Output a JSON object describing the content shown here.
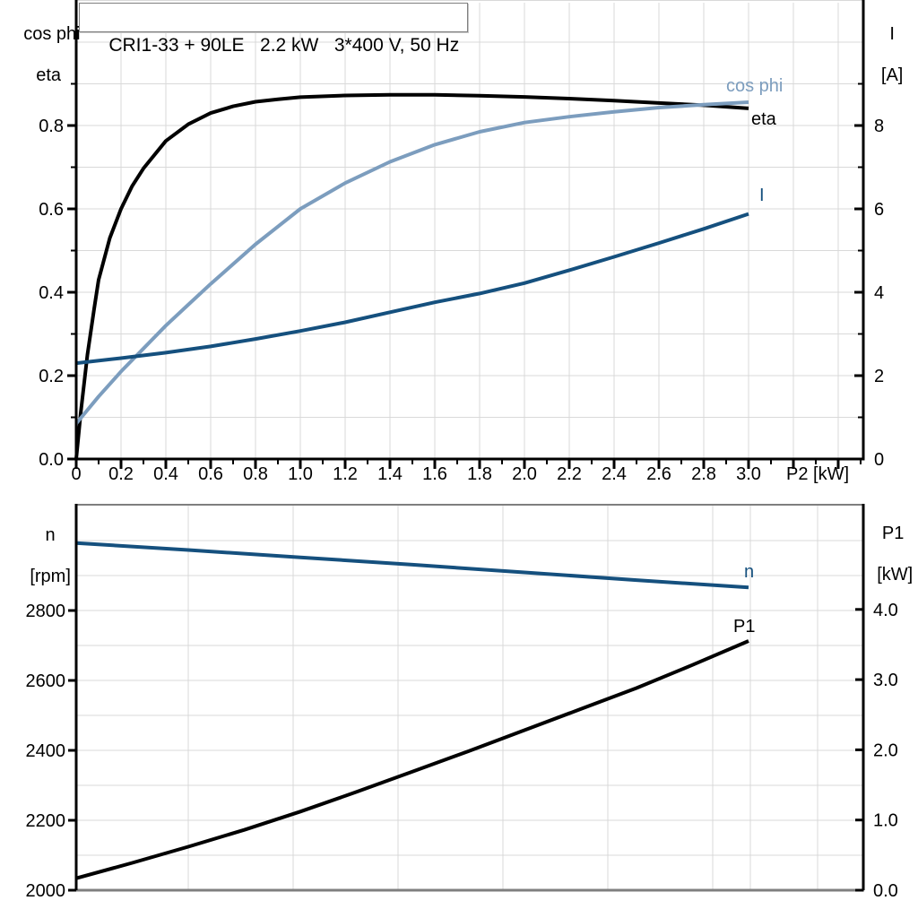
{
  "title": "CRI1-33 + 90LE   2.2 kW   3*400 V, 50 Hz",
  "colors": {
    "black": "#000000",
    "light_blue": "#7C9DBE",
    "dark_blue": "#15507E",
    "grid": "#D9D9D9",
    "frame_gray": "#7F7F7F",
    "background": "#FFFFFF"
  },
  "chart_data": [
    {
      "id": "motor-top",
      "type": "line",
      "x_axis": {
        "label": "P2 [kW]",
        "min": 0,
        "max": 3.51,
        "major_tick_step": 0.2,
        "minor_tick_step": 0.1,
        "tick_labels": [
          "0",
          "0.2",
          "0.4",
          "0.6",
          "0.8",
          "1.0",
          "1.2",
          "1.4",
          "1.6",
          "1.8",
          "2.0",
          "2.2",
          "2.4",
          "2.6",
          "2.8",
          "3.0"
        ]
      },
      "left_axis": {
        "label_lines": [
          "cos phi",
          "eta"
        ],
        "min": 0,
        "max": 1.09,
        "tick_values": [
          0,
          0.2,
          0.4,
          0.6,
          0.8
        ],
        "tick_labels": [
          "0.0",
          "0.2",
          "0.4",
          "0.6",
          "0.8"
        ],
        "grid_step": 0.1
      },
      "right_axis": {
        "label_lines": [
          "I",
          "[A]"
        ],
        "min": 0,
        "max": 10.9,
        "tick_values": [
          0,
          2,
          4,
          6,
          8
        ],
        "tick_labels": [
          "0",
          "2",
          "4",
          "6",
          "8"
        ],
        "minor_step": 1
      },
      "series": [
        {
          "name": "eta",
          "label": "eta",
          "axis": "left",
          "color_key": "black",
          "x": [
            0,
            0.02,
            0.05,
            0.08,
            0.1,
            0.15,
            0.2,
            0.25,
            0.3,
            0.4,
            0.5,
            0.6,
            0.7,
            0.8,
            0.9,
            1.0,
            1.2,
            1.4,
            1.6,
            1.8,
            2.0,
            2.2,
            2.4,
            2.6,
            2.8,
            3.0
          ],
          "values": [
            0,
            0.11,
            0.25,
            0.36,
            0.43,
            0.53,
            0.6,
            0.655,
            0.697,
            0.763,
            0.803,
            0.83,
            0.846,
            0.857,
            0.863,
            0.868,
            0.872,
            0.8735,
            0.8735,
            0.8715,
            0.8685,
            0.8645,
            0.8595,
            0.854,
            0.8485,
            0.841
          ]
        },
        {
          "name": "cos-phi",
          "label": "cos phi",
          "axis": "left",
          "color_key": "light_blue",
          "x": [
            0,
            0.1,
            0.2,
            0.3,
            0.4,
            0.5,
            0.6,
            0.8,
            1.0,
            1.2,
            1.4,
            1.6,
            1.8,
            2.0,
            2.2,
            2.4,
            2.6,
            2.8,
            3.0
          ],
          "values": [
            0.085,
            0.15,
            0.21,
            0.265,
            0.32,
            0.37,
            0.42,
            0.515,
            0.6,
            0.662,
            0.713,
            0.754,
            0.785,
            0.807,
            0.821,
            0.833,
            0.843,
            0.85,
            0.856
          ]
        },
        {
          "name": "current",
          "label": "I",
          "axis": "right",
          "color_key": "dark_blue",
          "x": [
            0,
            0.2,
            0.4,
            0.6,
            0.8,
            1.0,
            1.2,
            1.4,
            1.6,
            1.8,
            2.0,
            2.2,
            2.4,
            2.6,
            2.8,
            3.0
          ],
          "values": [
            2.3,
            2.42,
            2.55,
            2.7,
            2.88,
            3.07,
            3.28,
            3.52,
            3.76,
            3.97,
            4.22,
            4.53,
            4.85,
            5.18,
            5.52,
            5.88
          ]
        }
      ]
    },
    {
      "id": "motor-bottom",
      "type": "line",
      "x_axis": {
        "label": "",
        "min": 0,
        "max": 3.51
      },
      "left_axis": {
        "label_lines": [
          "n",
          "[rpm]"
        ],
        "min": 2000,
        "max": 3105,
        "tick_values": [
          2000,
          2200,
          2400,
          2600,
          2800
        ],
        "tick_labels": [
          "2000",
          "2200",
          "2400",
          "2600",
          "2800"
        ],
        "grid_step": 100
      },
      "right_axis": {
        "label_lines": [
          "P1",
          "[kW]"
        ],
        "min": 0,
        "max": 5.5,
        "tick_values": [
          0,
          1,
          2,
          3,
          4
        ],
        "tick_labels": [
          "0.0",
          "1.0",
          "2.0",
          "3.0",
          "4.0"
        ]
      },
      "series": [
        {
          "name": "speed",
          "label": "n",
          "axis": "left",
          "color_key": "dark_blue",
          "x": [
            0,
            0.5,
            1.0,
            1.5,
            2.0,
            2.5,
            3.0
          ],
          "values": [
            2993,
            2973,
            2952,
            2931,
            2909,
            2887,
            2866
          ]
        },
        {
          "name": "input-power",
          "label": "P1",
          "axis": "right",
          "color_key": "black",
          "x": [
            0,
            0.25,
            0.5,
            0.75,
            1.0,
            1.25,
            1.5,
            1.75,
            2.0,
            2.25,
            2.5,
            2.75,
            3.0
          ],
          "values": [
            0.17,
            0.39,
            0.62,
            0.86,
            1.12,
            1.4,
            1.69,
            1.98,
            2.28,
            2.58,
            2.88,
            3.21,
            3.55
          ]
        }
      ]
    }
  ]
}
